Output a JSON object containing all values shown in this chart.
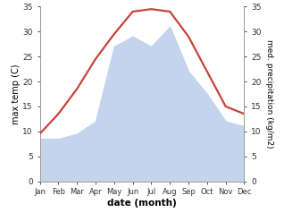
{
  "months": [
    "Jan",
    "Feb",
    "Mar",
    "Apr",
    "May",
    "Jun",
    "Jul",
    "Aug",
    "Sep",
    "Oct",
    "Nov",
    "Dec"
  ],
  "temperature": [
    9.5,
    13.5,
    18.5,
    24.5,
    29.5,
    34.0,
    34.5,
    34.0,
    29.0,
    22.0,
    15.0,
    13.5
  ],
  "precipitation": [
    8.5,
    8.5,
    9.5,
    12.0,
    27.0,
    29.0,
    27.0,
    31.0,
    22.0,
    17.5,
    12.0,
    11.0
  ],
  "temp_color": "#c8433a",
  "precip_color": "#c5d4ed",
  "ylim": [
    0,
    35
  ],
  "yticks": [
    0,
    5,
    10,
    15,
    20,
    25,
    30,
    35
  ],
  "ylabel_left": "max temp (C)",
  "ylabel_right": "med. precipitation (kg/m2)",
  "xlabel": "date (month)",
  "background_color": "#ffffff",
  "spine_color": "#999999",
  "tick_color": "#333333"
}
